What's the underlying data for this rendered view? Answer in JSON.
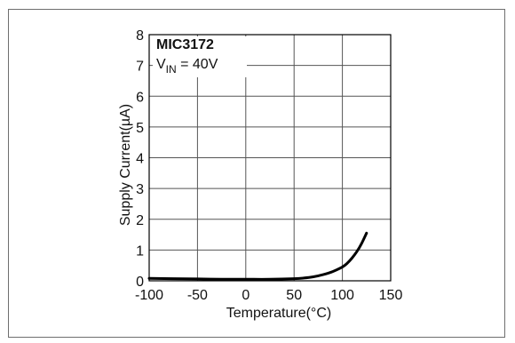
{
  "chart_data": {
    "type": "line",
    "title": "",
    "xlabel": "Temperature(°C)",
    "ylabel": "Supply Current(µA)",
    "xlim": [
      -100,
      150
    ],
    "ylim": [
      0,
      8
    ],
    "x_ticks": [
      "-100",
      "-50",
      "0",
      "50",
      "100",
      "150"
    ],
    "y_ticks": [
      "0",
      "1",
      "2",
      "3",
      "4",
      "5",
      "6",
      "7",
      "8"
    ],
    "grid": true,
    "annotations": {
      "part": "MIC3172",
      "condition_prefix": "V",
      "condition_sub": "IN",
      "condition_suffix": " = 40V"
    },
    "series": [
      {
        "color": "#000000",
        "x": [
          -100,
          -75,
          -50,
          -25,
          0,
          25,
          50,
          60,
          70,
          80,
          90,
          100,
          105,
          110,
          115,
          120,
          125
        ],
        "y": [
          0.08,
          0.07,
          0.06,
          0.05,
          0.05,
          0.05,
          0.07,
          0.09,
          0.13,
          0.2,
          0.3,
          0.45,
          0.57,
          0.74,
          0.95,
          1.22,
          1.55
        ]
      }
    ]
  }
}
